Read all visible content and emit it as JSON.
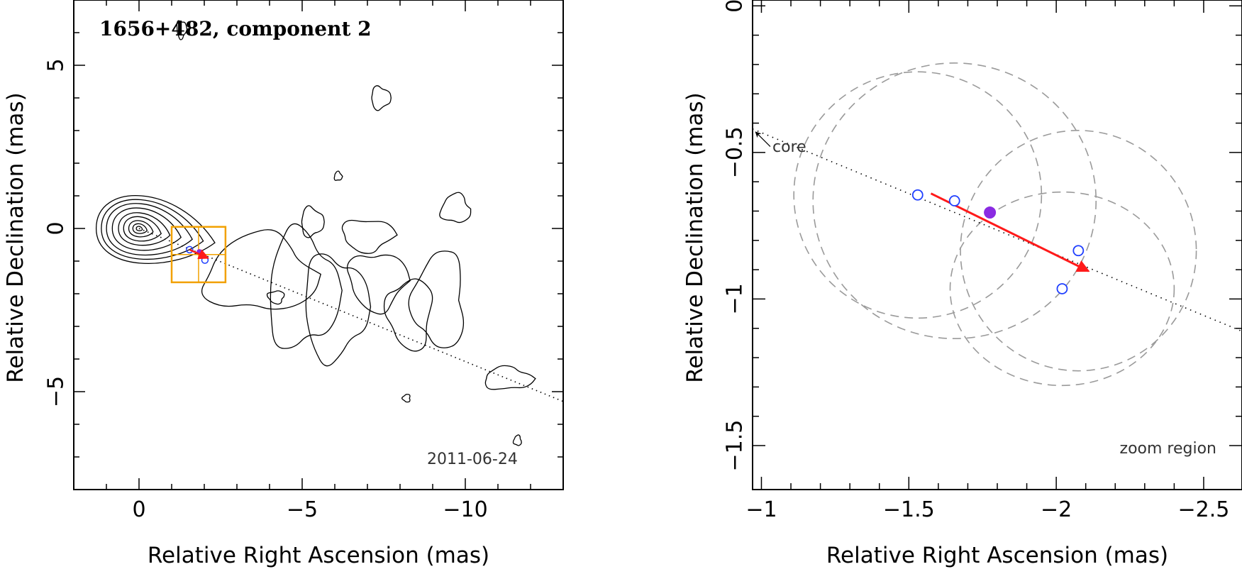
{
  "chart_data": [
    {
      "type": "contour-map",
      "title": "1656+482, component 2",
      "xlabel": "Relative Right Ascension (mas)",
      "ylabel": "Relative Declination (mas)",
      "xlim": [
        2,
        -13
      ],
      "ylim": [
        -8,
        7
      ],
      "x_ticks": [
        0,
        -5,
        -10
      ],
      "x_tick_labels": [
        "0",
        "−5",
        "−10"
      ],
      "y_ticks": [
        5,
        0,
        -5
      ],
      "y_tick_labels": [
        "5",
        "0",
        "−5"
      ],
      "date_label": "2011-06-24",
      "core": {
        "x": 0,
        "y": 0
      },
      "core_rings_dec_extent": [
        0.08,
        0.18,
        0.3,
        0.45,
        0.6,
        0.78,
        0.95,
        1.1,
        1.25
      ],
      "jet_axis": {
        "from": [
          0,
          0
        ],
        "to": [
          -13,
          -5.3
        ]
      },
      "zoom_box": {
        "x1": -1,
        "x2": -2.65,
        "y1": 0.05,
        "y2": -1.65
      },
      "components": [
        {
          "x": -1.55,
          "y": -0.65,
          "marker": "open-circle"
        },
        {
          "x": -1.85,
          "y": -0.72,
          "marker": "filled-circle"
        },
        {
          "x": -2.02,
          "y": -0.97,
          "marker": "open-circle"
        }
      ],
      "velocity_arrow": {
        "from": [
          -1.55,
          -0.65
        ],
        "to": [
          -2.12,
          -0.91
        ]
      }
    },
    {
      "type": "scatter",
      "xlabel": "Relative Right Ascension (mas)",
      "ylabel": "Relative Declination (mas)",
      "xlim": [
        -0.97,
        -2.63
      ],
      "ylim": [
        -1.65,
        0.02
      ],
      "x_ticks": [
        -1,
        -1.5,
        -2,
        -2.5
      ],
      "x_tick_labels": [
        "−1",
        "−1.5",
        "−2",
        "−2.5"
      ],
      "y_ticks": [
        0,
        -0.5,
        -1,
        -1.5
      ],
      "y_tick_labels": [
        "0",
        "−0.5",
        "−1",
        "−1.5"
      ],
      "region_label": "zoom region",
      "core_label": "core",
      "core_direction_arrow": {
        "from": [
          -1.03,
          -0.48
        ],
        "to": [
          -0.98,
          -0.43
        ]
      },
      "jet_axis": {
        "from": [
          -0.97,
          -0.42
        ],
        "to": [
          -2.63,
          -1.11
        ]
      },
      "open_points": [
        {
          "x": -1.53,
          "y": -0.645
        },
        {
          "x": -1.655,
          "y": -0.665
        },
        {
          "x": -2.075,
          "y": -0.835
        },
        {
          "x": -2.02,
          "y": -0.965
        }
      ],
      "filled_point": {
        "x": -1.775,
        "y": -0.705
      },
      "velocity_arrow": {
        "from": [
          -1.575,
          -0.64
        ],
        "to": [
          -2.11,
          -0.905
        ]
      },
      "error_ellipses": [
        {
          "cx": -1.53,
          "cy": -0.645,
          "rx": 0.42,
          "ry": 0.42
        },
        {
          "cx": -1.655,
          "cy": -0.665,
          "rx": 0.48,
          "ry": 0.47
        },
        {
          "cx": -2.075,
          "cy": -0.835,
          "rx": 0.4,
          "ry": 0.41
        },
        {
          "cx": -2.02,
          "cy": -0.965,
          "rx": 0.38,
          "ry": 0.33
        }
      ]
    }
  ]
}
